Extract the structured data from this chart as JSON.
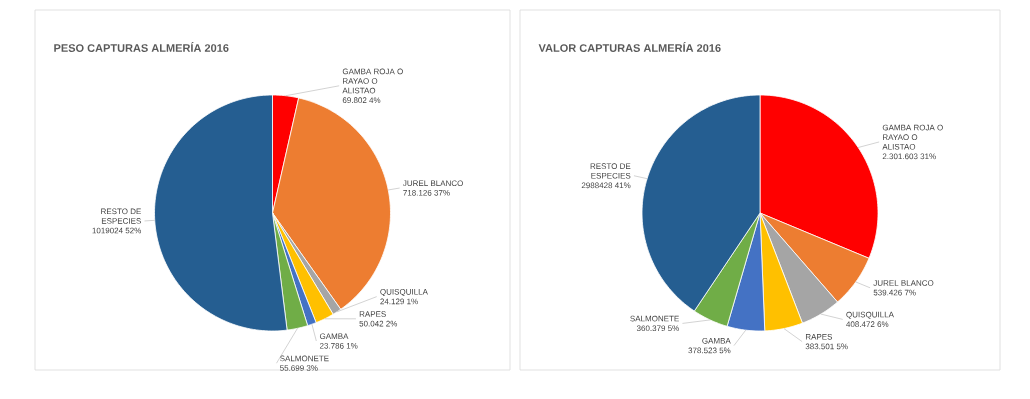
{
  "chart_data": [
    {
      "type": "pie",
      "title": "PESO CAPTURAS ALMERÍA 2016",
      "categories": [
        "GAMBA ROJA O RAYAO O ALISTAO",
        "JUREL BLANCO",
        "QUISQUILLA",
        "RAPES",
        "GAMBA",
        "SALMONETE",
        "RESTO DE ESPECIES"
      ],
      "values": [
        69802,
        718126,
        24129,
        50042,
        23786,
        55699,
        1019024
      ],
      "value_labels": [
        "69.802 4%",
        "718.126 37%",
        "24.129 1%",
        "50.042 2%",
        "23.786 1%",
        "55.699 3%",
        "1019024 52%"
      ],
      "colors": [
        "#ff0000",
        "#ed7d31",
        "#a5a5a5",
        "#ffc000",
        "#4472c4",
        "#70ad47",
        "#255e91"
      ]
    },
    {
      "type": "pie",
      "title": "VALOR CAPTURAS ALMERÍA 2016",
      "categories": [
        "GAMBA ROJA O RAYAO O ALISTAO",
        "JUREL BLANCO",
        "QUISQUILLA",
        "RAPES",
        "GAMBA",
        "SALMONETE",
        "RESTO DE ESPECIES"
      ],
      "values": [
        2301603,
        539426,
        408472,
        383501,
        378523,
        360379,
        2988428
      ],
      "value_labels": [
        "2.301.603 31%",
        "539.426 7%",
        "408.472 6%",
        "383.501 5%",
        "378.523 5%",
        "360.379 5%",
        "2988428 41%"
      ],
      "colors": [
        "#ff0000",
        "#ed7d31",
        "#a5a5a5",
        "#ffc000",
        "#4472c4",
        "#70ad47",
        "#255e91"
      ]
    }
  ]
}
